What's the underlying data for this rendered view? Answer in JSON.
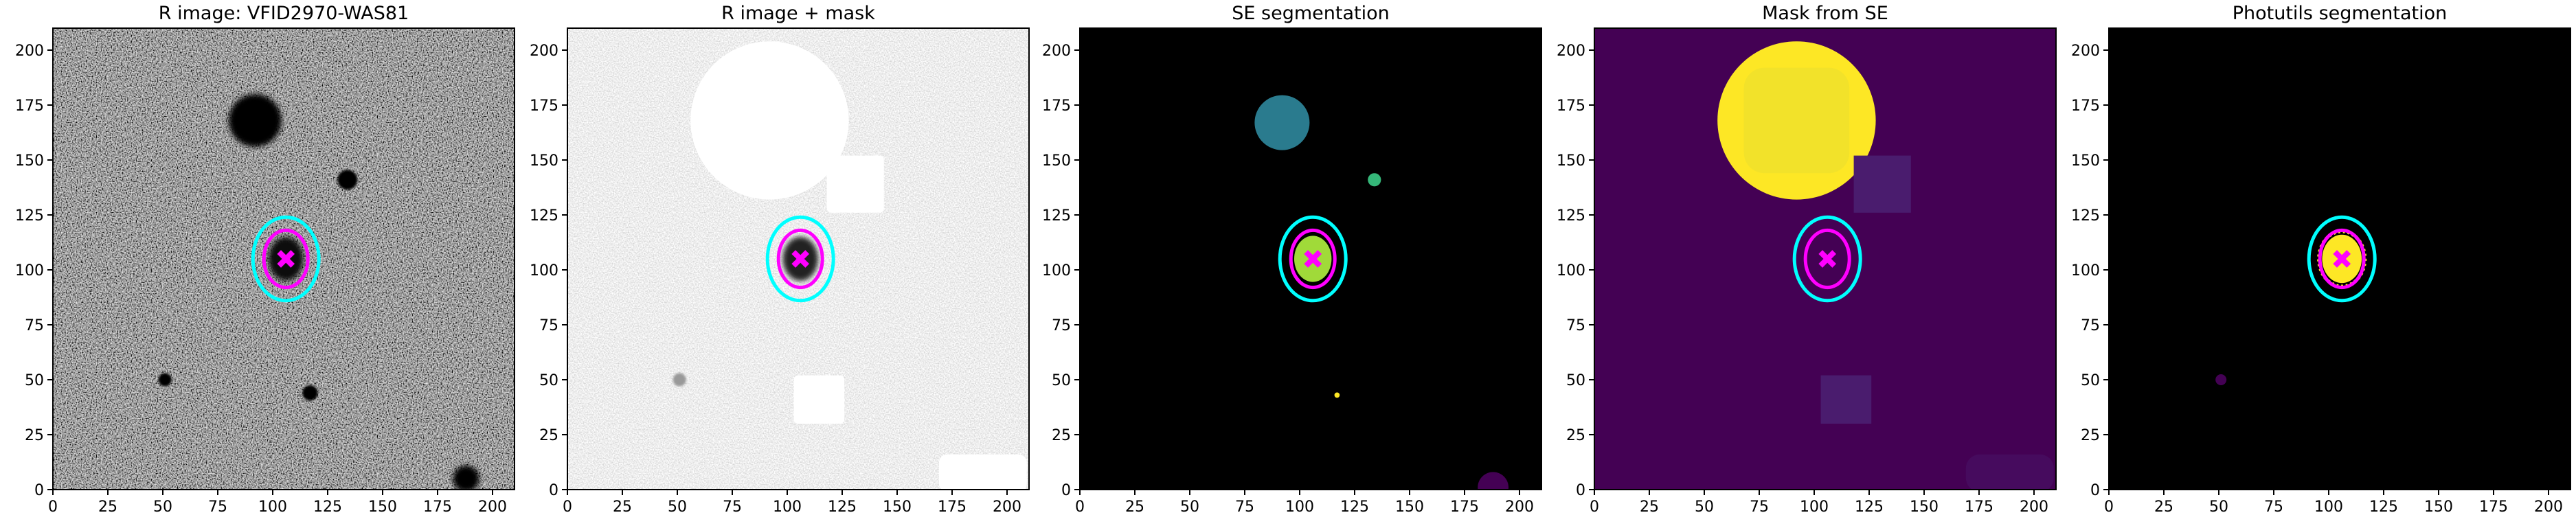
{
  "chart_data": [
    {
      "type": "image",
      "title": "R image: VFID2970-WAS81",
      "xlim": [
        0,
        210
      ],
      "ylim": [
        0,
        210
      ],
      "xticks": [
        0,
        25,
        50,
        75,
        100,
        125,
        150,
        175,
        200
      ],
      "yticks": [
        0,
        25,
        50,
        75,
        100,
        125,
        150,
        175,
        200
      ]
    },
    {
      "type": "image",
      "title": "R image + mask",
      "xlim": [
        0,
        210
      ],
      "ylim": [
        0,
        210
      ],
      "xticks": [
        0,
        25,
        50,
        75,
        100,
        125,
        150,
        175,
        200
      ],
      "yticks": [
        0,
        25,
        50,
        75,
        100,
        125,
        150,
        175,
        200
      ]
    },
    {
      "type": "image",
      "title": "SE segmentation",
      "xlim": [
        0,
        210
      ],
      "ylim": [
        0,
        210
      ],
      "xticks": [
        0,
        25,
        50,
        75,
        100,
        125,
        150,
        175,
        200
      ],
      "yticks": [
        0,
        25,
        50,
        75,
        100,
        125,
        150,
        175,
        200
      ]
    },
    {
      "type": "image",
      "title": "Mask from SE",
      "xlim": [
        0,
        210
      ],
      "ylim": [
        0,
        210
      ],
      "xticks": [
        0,
        25,
        50,
        75,
        100,
        125,
        150,
        175,
        200
      ],
      "yticks": [
        0,
        25,
        50,
        75,
        100,
        125,
        150,
        175,
        200
      ]
    },
    {
      "type": "image",
      "title": "Photutils segmentation",
      "xlim": [
        0,
        210
      ],
      "ylim": [
        0,
        210
      ],
      "xticks": [
        0,
        25,
        50,
        75,
        100,
        125,
        150,
        175,
        200
      ],
      "yticks": [
        0,
        25,
        50,
        75,
        100,
        125,
        150,
        175,
        200
      ]
    }
  ]
}
